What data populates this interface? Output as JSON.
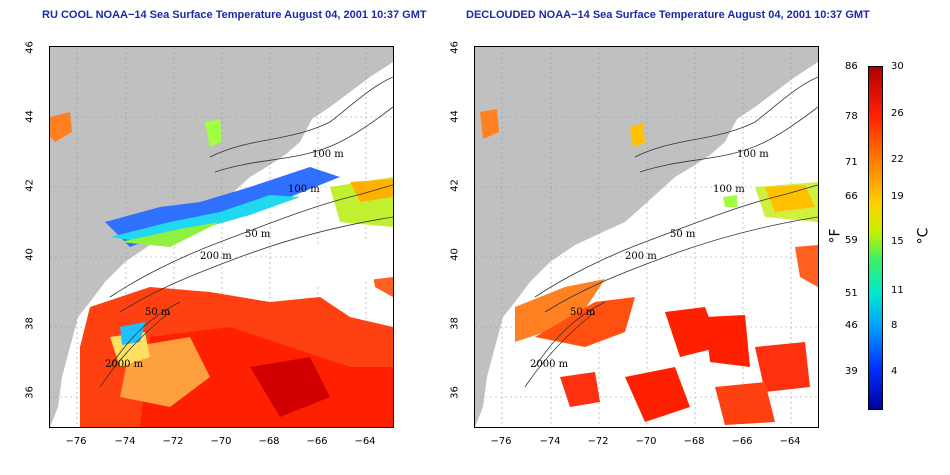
{
  "left_panel": {
    "title": "RU COOL NOAA−14 Sea Surface Temperature August 04, 2001 10:37 GMT"
  },
  "right_panel": {
    "title": "DECLOUDED NOAA−14 Sea Surface Temperature August 04, 2001 10:37 GMT"
  },
  "axes": {
    "lat_ticks": [
      "46",
      "44",
      "42",
      "40",
      "38",
      "36"
    ],
    "lon_ticks": [
      "−76",
      "−74",
      "−72",
      "−70",
      "−68",
      "−66",
      "−64"
    ]
  },
  "contour_labels": {
    "c100a": "100 m",
    "c100b": "100 m",
    "c50": "50 m",
    "c200": "200 m",
    "c50b": "50 m",
    "c2000": "2000 m"
  },
  "colorbar": {
    "fahrenheit_unit": "°F",
    "celsius_unit": "°C",
    "fahrenheit_ticks": [
      "86",
      "78",
      "71",
      "66",
      "59",
      "51",
      "46",
      "39"
    ],
    "celsius_ticks": [
      "30",
      "26",
      "22",
      "19",
      "15",
      "11",
      "8",
      "4"
    ],
    "colors": {
      "low": "#0000a0",
      "mid": "#40f060",
      "high": "#b00000",
      "land": "#c0c0c0"
    }
  }
}
